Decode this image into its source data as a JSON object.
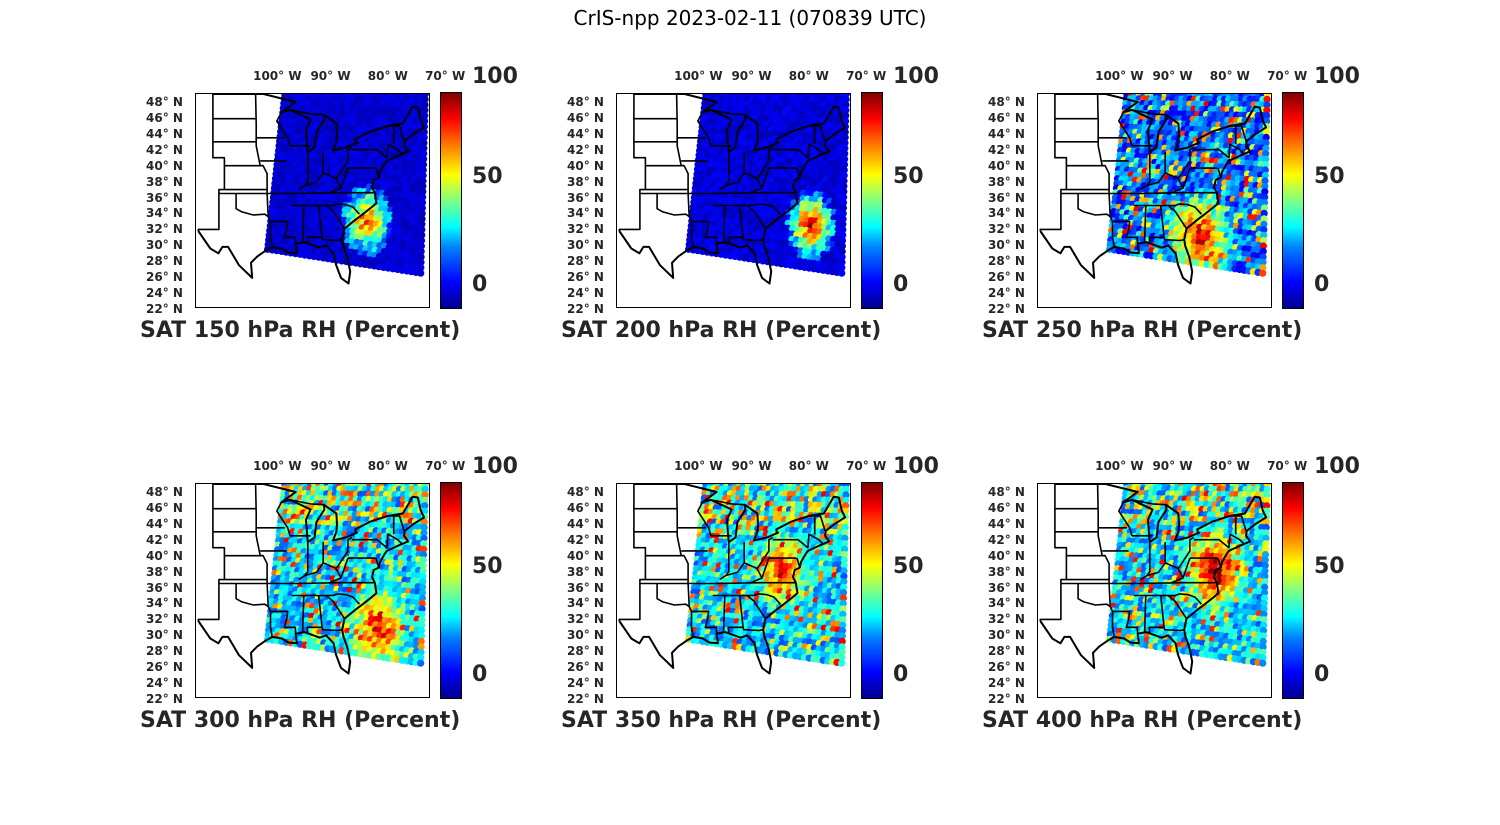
{
  "title": "CrIS-npp 2023-02-11 (070839 UTC)",
  "lon_labels": [
    "100° W",
    "90° W",
    "80° W",
    "70° W"
  ],
  "lat_labels": [
    "48° N",
    "46° N",
    "44° N",
    "42° N",
    "40° N",
    "38° N",
    "36° N",
    "34° N",
    "32° N",
    "30° N",
    "28° N",
    "26° N",
    "24° N",
    "22° N"
  ],
  "colorbar": {
    "ticks": [
      "100",
      "50",
      "0"
    ],
    "colormap": "jet",
    "range": [
      0,
      100
    ]
  },
  "panels": [
    {
      "label": "SAT 150 hPa RH (Percent)",
      "level_hpa": 150,
      "humid_patches": [
        {
          "lon": -77,
          "lat": 33,
          "rh": 70
        }
      ]
    },
    {
      "label": "SAT 200 hPa RH (Percent)",
      "level_hpa": 200,
      "humid_patches": [
        {
          "lon": -73,
          "lat": 32.5,
          "rh": 85
        }
      ]
    },
    {
      "label": "SAT 250 hPa RH (Percent)",
      "level_hpa": 250,
      "humid_patches": [
        {
          "lon": -79,
          "lat": 31,
          "rh": 80
        }
      ]
    },
    {
      "label": "SAT 300 hPa RH (Percent)",
      "level_hpa": 300,
      "humid_patches": [
        {
          "lon": -75,
          "lat": 31,
          "rh": 80
        }
      ]
    },
    {
      "label": "SAT 350 hPa RH (Percent)",
      "level_hpa": 350,
      "humid_patches": [
        {
          "lon": -78,
          "lat": 38,
          "rh": 75
        }
      ]
    },
    {
      "label": "SAT 400 hPa RH (Percent)",
      "level_hpa": 400,
      "humid_patches": [
        {
          "lon": -76,
          "lat": 38,
          "rh": 90
        }
      ]
    }
  ]
}
